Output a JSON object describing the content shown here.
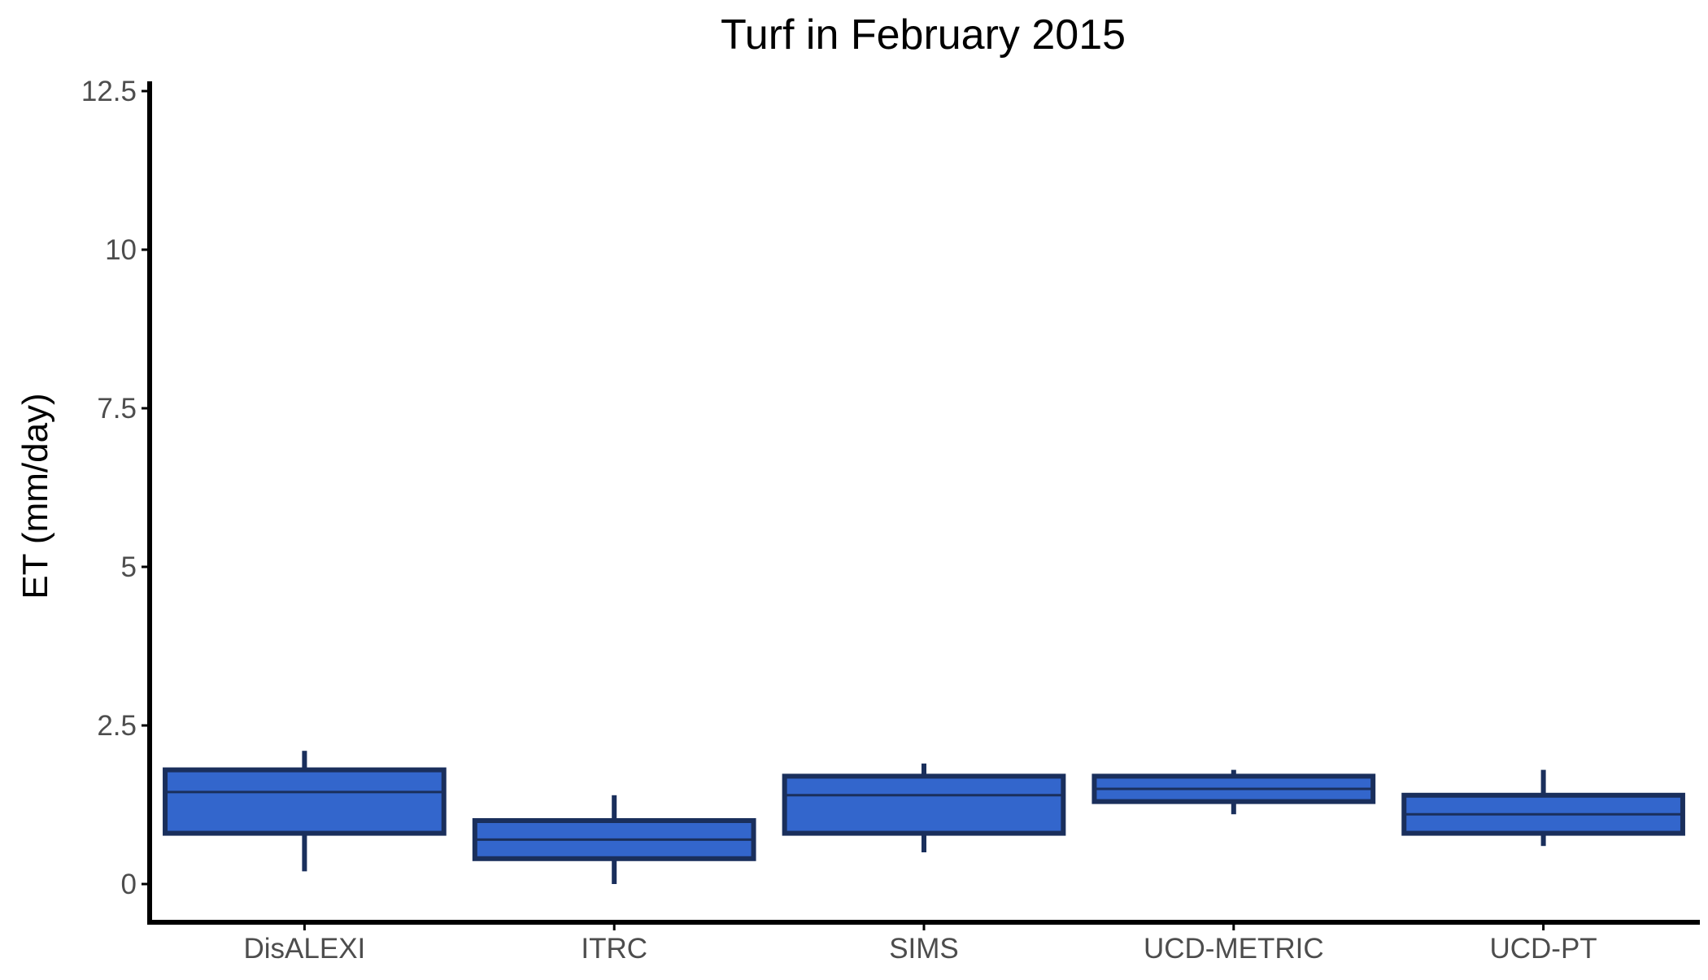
{
  "chart_data": {
    "type": "box",
    "title": "Turf in February 2015",
    "xlabel": "",
    "ylabel": "ET (mm/day)",
    "ylim": [
      -0.6,
      12.6
    ],
    "y_ticks": [
      0,
      2.5,
      5,
      7.5,
      10,
      12.5
    ],
    "y_tick_labels": [
      "0",
      "2.5",
      "5",
      "7.5",
      "10",
      "12.5"
    ],
    "categories": [
      "DisALEXI",
      "ITRC",
      "SIMS",
      "UCD-METRIC",
      "UCD-PT"
    ],
    "grid": false,
    "legend": "none",
    "box_fill": "#3366cc",
    "box_stroke": "#1a2f5c",
    "series": [
      {
        "boxes": [
          {
            "category": "DisALEXI",
            "min": 0.2,
            "q1": 0.8,
            "median": 1.45,
            "q3": 1.8,
            "max": 2.1
          },
          {
            "category": "ITRC",
            "min": 0.0,
            "q1": 0.4,
            "median": 0.7,
            "q3": 1.0,
            "max": 1.4
          },
          {
            "category": "SIMS",
            "min": 0.5,
            "q1": 0.8,
            "median": 1.4,
            "q3": 1.7,
            "max": 1.9
          },
          {
            "category": "UCD-METRIC",
            "min": 1.1,
            "q1": 1.3,
            "median": 1.5,
            "q3": 1.7,
            "max": 1.8
          },
          {
            "category": "UCD-PT",
            "min": 0.6,
            "q1": 0.8,
            "median": 1.1,
            "q3": 1.4,
            "max": 1.8
          }
        ]
      }
    ]
  }
}
